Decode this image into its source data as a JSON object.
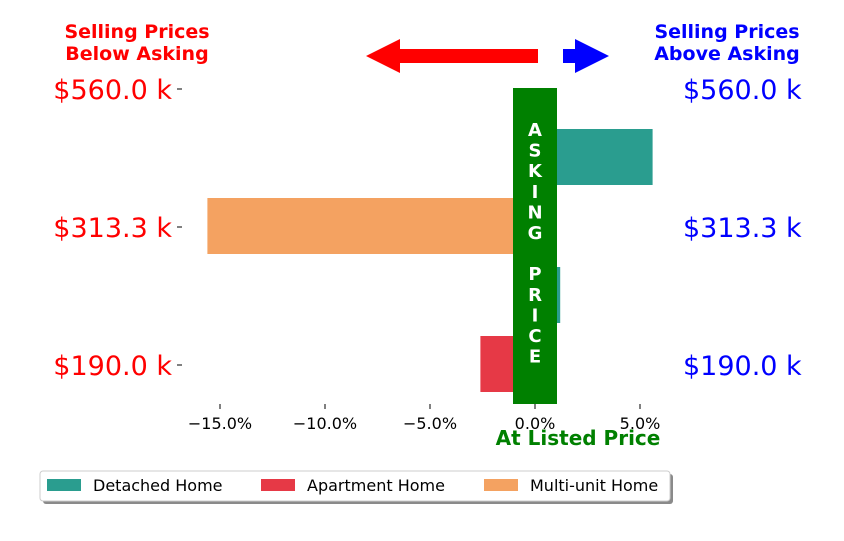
{
  "headers": {
    "left": [
      "Selling Prices",
      "Below Asking"
    ],
    "right": [
      "Selling Prices",
      "Above Asking"
    ],
    "left_color": "#ff0000",
    "right_color": "#0000ff"
  },
  "asking_price_label": "ASKING PRICE",
  "asking_price_color": "#008000",
  "at_listed_label": "At Listed Price",
  "chart_data": {
    "type": "bar",
    "orientation": "horizontal",
    "price_levels": [
      "$560.0 k",
      "$313.3 k",
      "$190.0 k"
    ],
    "xlim": [
      -17.0,
      6.5
    ],
    "xticks": [
      -15,
      -10,
      -5,
      0,
      5
    ],
    "xtick_labels": [
      "−15.0%",
      "−10.0%",
      "−5.0%",
      "0.0%",
      "5.0%"
    ],
    "series": [
      {
        "name": "Detached Home",
        "color": "#2a9d8f",
        "points": [
          {
            "level": 0,
            "value": 5.6
          },
          {
            "level": 1,
            "value": 1.2
          }
        ]
      },
      {
        "name": "Apartment Home",
        "color": "#e63946",
        "points": [
          {
            "level": 2,
            "value": -2.6
          }
        ]
      },
      {
        "name": "Multi-unit Home",
        "color": "#f4a261",
        "points": [
          {
            "level": 1,
            "value": -15.6
          }
        ]
      }
    ],
    "legend_position": "bottom-left"
  }
}
